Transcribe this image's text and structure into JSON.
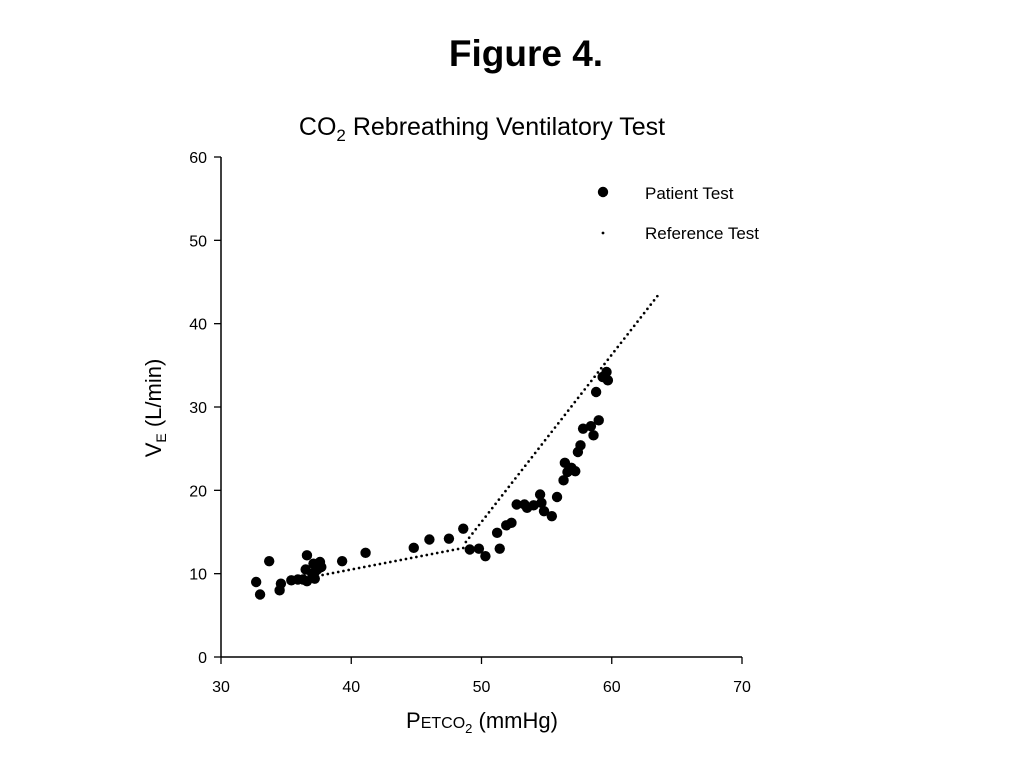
{
  "figure_heading": "Figure 4.",
  "chart_data": {
    "type": "scatter",
    "title": {
      "prefix": "CO",
      "sub": "2",
      "suffix": " Rebreathing Ventilatory Test"
    },
    "xlabel": {
      "first": "P",
      "small_caps": "ETCO",
      "sub": "2",
      "rest": " (mmHg)"
    },
    "ylabel": {
      "main": "V",
      "sub": "E",
      "rest": " (L/min)"
    },
    "xlim": [
      30,
      70
    ],
    "ylim": [
      0,
      60
    ],
    "xticks": [
      30,
      40,
      50,
      60,
      70
    ],
    "yticks": [
      0,
      10,
      20,
      30,
      40,
      50,
      60
    ],
    "grid": false,
    "legend_position": "top-right",
    "series": [
      {
        "name": "Patient Test",
        "style": "marker",
        "points": [
          [
            32.7,
            9.0
          ],
          [
            33.0,
            7.5
          ],
          [
            33.7,
            11.5
          ],
          [
            34.5,
            8.0
          ],
          [
            34.6,
            8.8
          ],
          [
            35.4,
            9.2
          ],
          [
            35.9,
            9.3
          ],
          [
            36.3,
            9.3
          ],
          [
            36.5,
            10.5
          ],
          [
            36.6,
            12.2
          ],
          [
            36.6,
            9.1
          ],
          [
            37.0,
            10.0
          ],
          [
            37.1,
            11.2
          ],
          [
            37.2,
            10.2
          ],
          [
            37.2,
            9.4
          ],
          [
            37.4,
            10.5
          ],
          [
            37.6,
            11.4
          ],
          [
            37.7,
            10.8
          ],
          [
            39.3,
            11.5
          ],
          [
            41.1,
            12.5
          ],
          [
            44.8,
            13.1
          ],
          [
            46.0,
            14.1
          ],
          [
            47.5,
            14.2
          ],
          [
            48.6,
            15.4
          ],
          [
            49.1,
            12.9
          ],
          [
            49.8,
            13.0
          ],
          [
            50.3,
            12.1
          ],
          [
            51.2,
            14.9
          ],
          [
            51.4,
            13.0
          ],
          [
            51.9,
            15.8
          ],
          [
            52.3,
            16.1
          ],
          [
            52.7,
            18.3
          ],
          [
            53.3,
            18.3
          ],
          [
            53.5,
            17.9
          ],
          [
            54.0,
            18.2
          ],
          [
            54.5,
            19.5
          ],
          [
            54.6,
            18.5
          ],
          [
            54.8,
            17.5
          ],
          [
            55.4,
            16.9
          ],
          [
            55.8,
            19.2
          ],
          [
            56.3,
            21.2
          ],
          [
            56.4,
            23.3
          ],
          [
            56.6,
            22.2
          ],
          [
            56.9,
            22.7
          ],
          [
            57.2,
            22.3
          ],
          [
            57.4,
            24.6
          ],
          [
            57.6,
            25.4
          ],
          [
            57.8,
            27.4
          ],
          [
            58.4,
            27.7
          ],
          [
            58.6,
            26.6
          ],
          [
            58.8,
            31.8
          ],
          [
            59.0,
            28.4
          ],
          [
            59.3,
            33.6
          ],
          [
            59.6,
            34.2
          ],
          [
            59.7,
            33.2
          ]
        ]
      },
      {
        "name": "Reference Test",
        "style": "dotted",
        "segments": [
          [
            [
              37.0,
              9.6
            ],
            [
              49.0,
              13.2
            ]
          ],
          [
            [
              48.8,
              13.8
            ],
            [
              63.5,
              43.3
            ]
          ]
        ]
      }
    ]
  }
}
